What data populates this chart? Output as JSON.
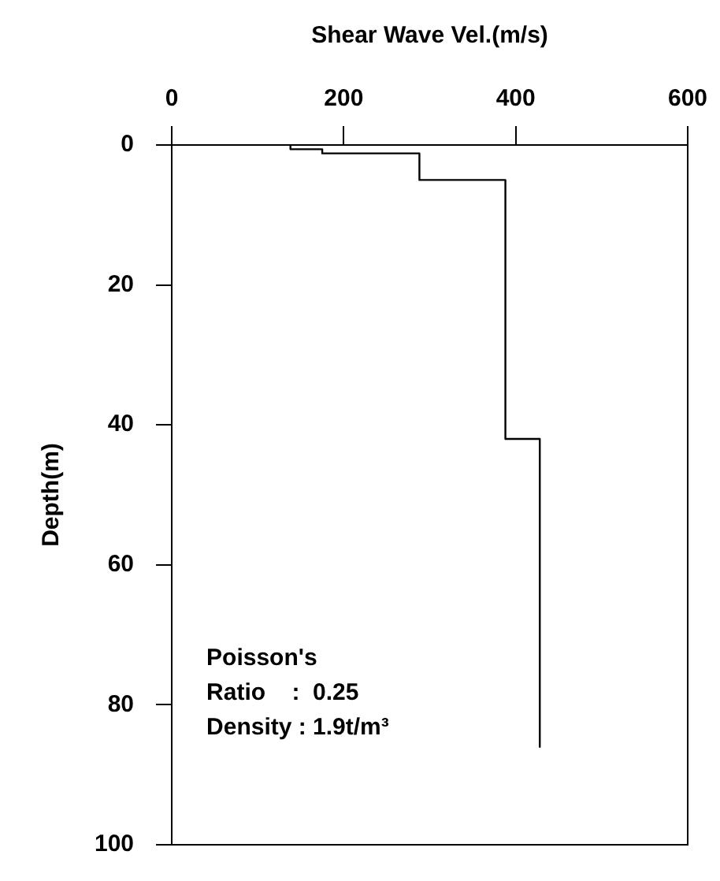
{
  "chart_data": {
    "type": "line",
    "xlabel": "Shear Wave Vel.(m/s)",
    "ylabel": "Depth(m)",
    "xlim": [
      0,
      600
    ],
    "xticks": [
      0,
      200,
      400,
      600
    ],
    "ylim": [
      100,
      0
    ],
    "yticks": [
      0,
      20,
      40,
      60,
      80,
      100
    ],
    "x": [
      138,
      138,
      175,
      175,
      288,
      288,
      388,
      388,
      428,
      428
    ],
    "series": [
      {
        "color": "#000000",
        "values": [
          0,
          0.6,
          0.6,
          1.2,
          1.2,
          5,
          5,
          42,
          42,
          86
        ]
      }
    ],
    "grid": false,
    "legend": false,
    "marker": "none",
    "line_style": "solid",
    "annotations": [
      "Poisson's",
      "Ratio    :  0.25",
      "Density : 1.9t/m³"
    ]
  }
}
